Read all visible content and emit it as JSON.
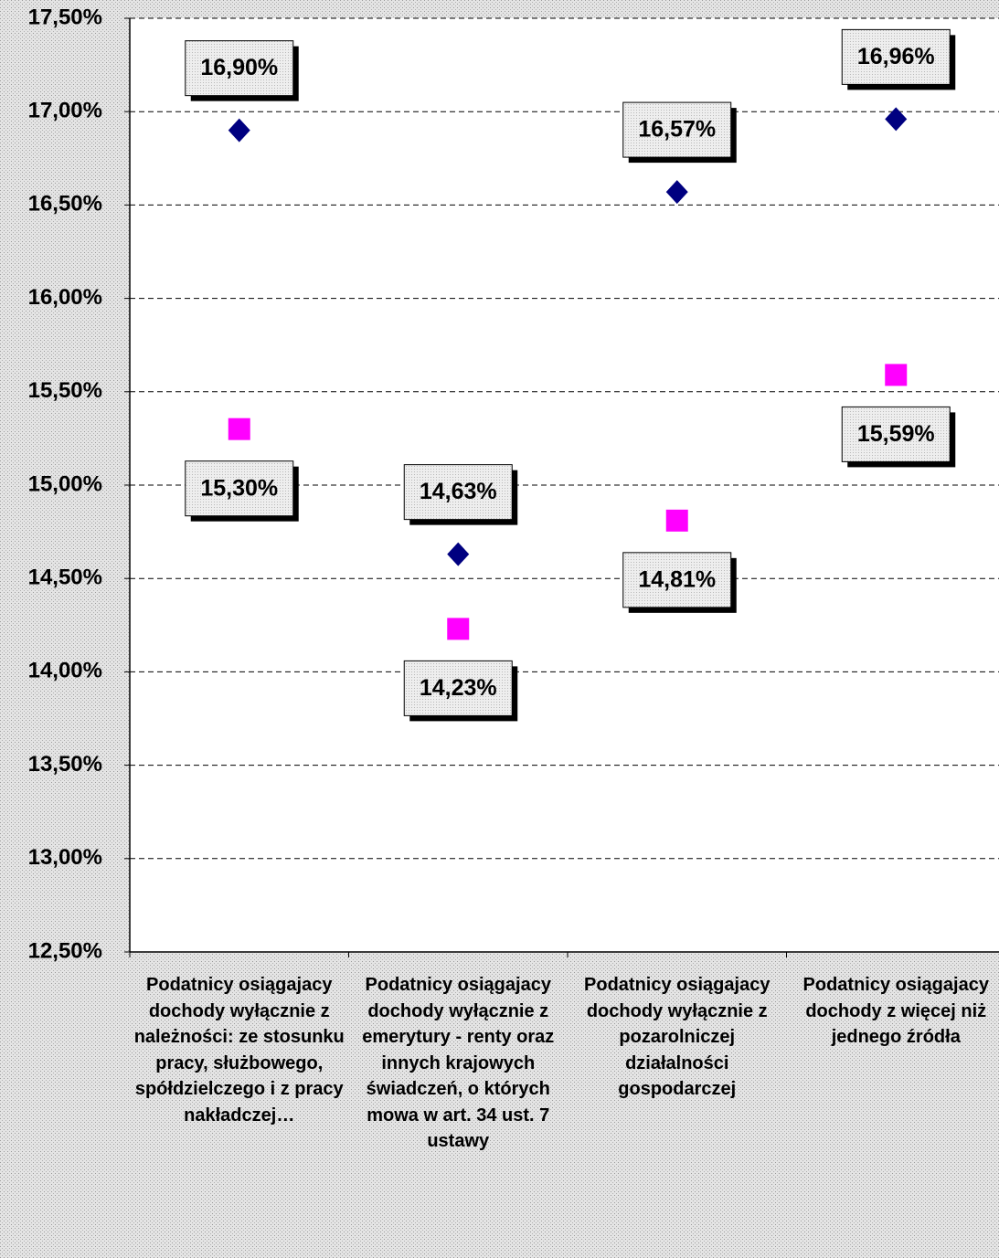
{
  "chart_data": {
    "type": "scatter",
    "categories": [
      "Podatnicy osiągajacy dochody wyłącznie z należności: ze stosunku pracy, służbowego, spółdzielczego i z pracy nakładczej…",
      "Podatnicy osiągajacy dochody wyłącznie z emerytury - renty oraz innych krajowych świadczeń, o których mowa w art. 34 ust. 7 ustawy",
      "Podatnicy osiągajacy dochody wyłącznie z pozarolniczej działalności gospodarczej",
      "Podatnicy osiągajacy dochody z więcej niż jednego źródła"
    ],
    "series": [
      {
        "color": "#000080",
        "marker": "diamond",
        "values": [
          16.9,
          14.63,
          16.57,
          16.96
        ],
        "value_labels": [
          "16,90%",
          "14,63%",
          "16,57%",
          "16,96%"
        ]
      },
      {
        "color": "#ff00ff",
        "marker": "square",
        "values": [
          15.3,
          14.23,
          14.81,
          15.59
        ],
        "value_labels": [
          "15,30%",
          "14,23%",
          "14,81%",
          "15,59%"
        ]
      }
    ],
    "ylim": [
      12.5,
      17.5
    ],
    "yticks": [
      {
        "value": 12.5,
        "label": "12,50%"
      },
      {
        "value": 13,
        "label": "13,00%"
      },
      {
        "value": 13.5,
        "label": "13,50%"
      },
      {
        "value": 14,
        "label": "14,00%"
      },
      {
        "value": 14.5,
        "label": "14,50%"
      },
      {
        "value": 15,
        "label": "15,00%"
      },
      {
        "value": 15.5,
        "label": "15,50%"
      },
      {
        "value": 16,
        "label": "16,00%"
      },
      {
        "value": 16.5,
        "label": "16,50%"
      },
      {
        "value": 17,
        "label": "17,00%"
      },
      {
        "value": 17.5,
        "label": "17,50%"
      }
    ],
    "grid": true
  }
}
